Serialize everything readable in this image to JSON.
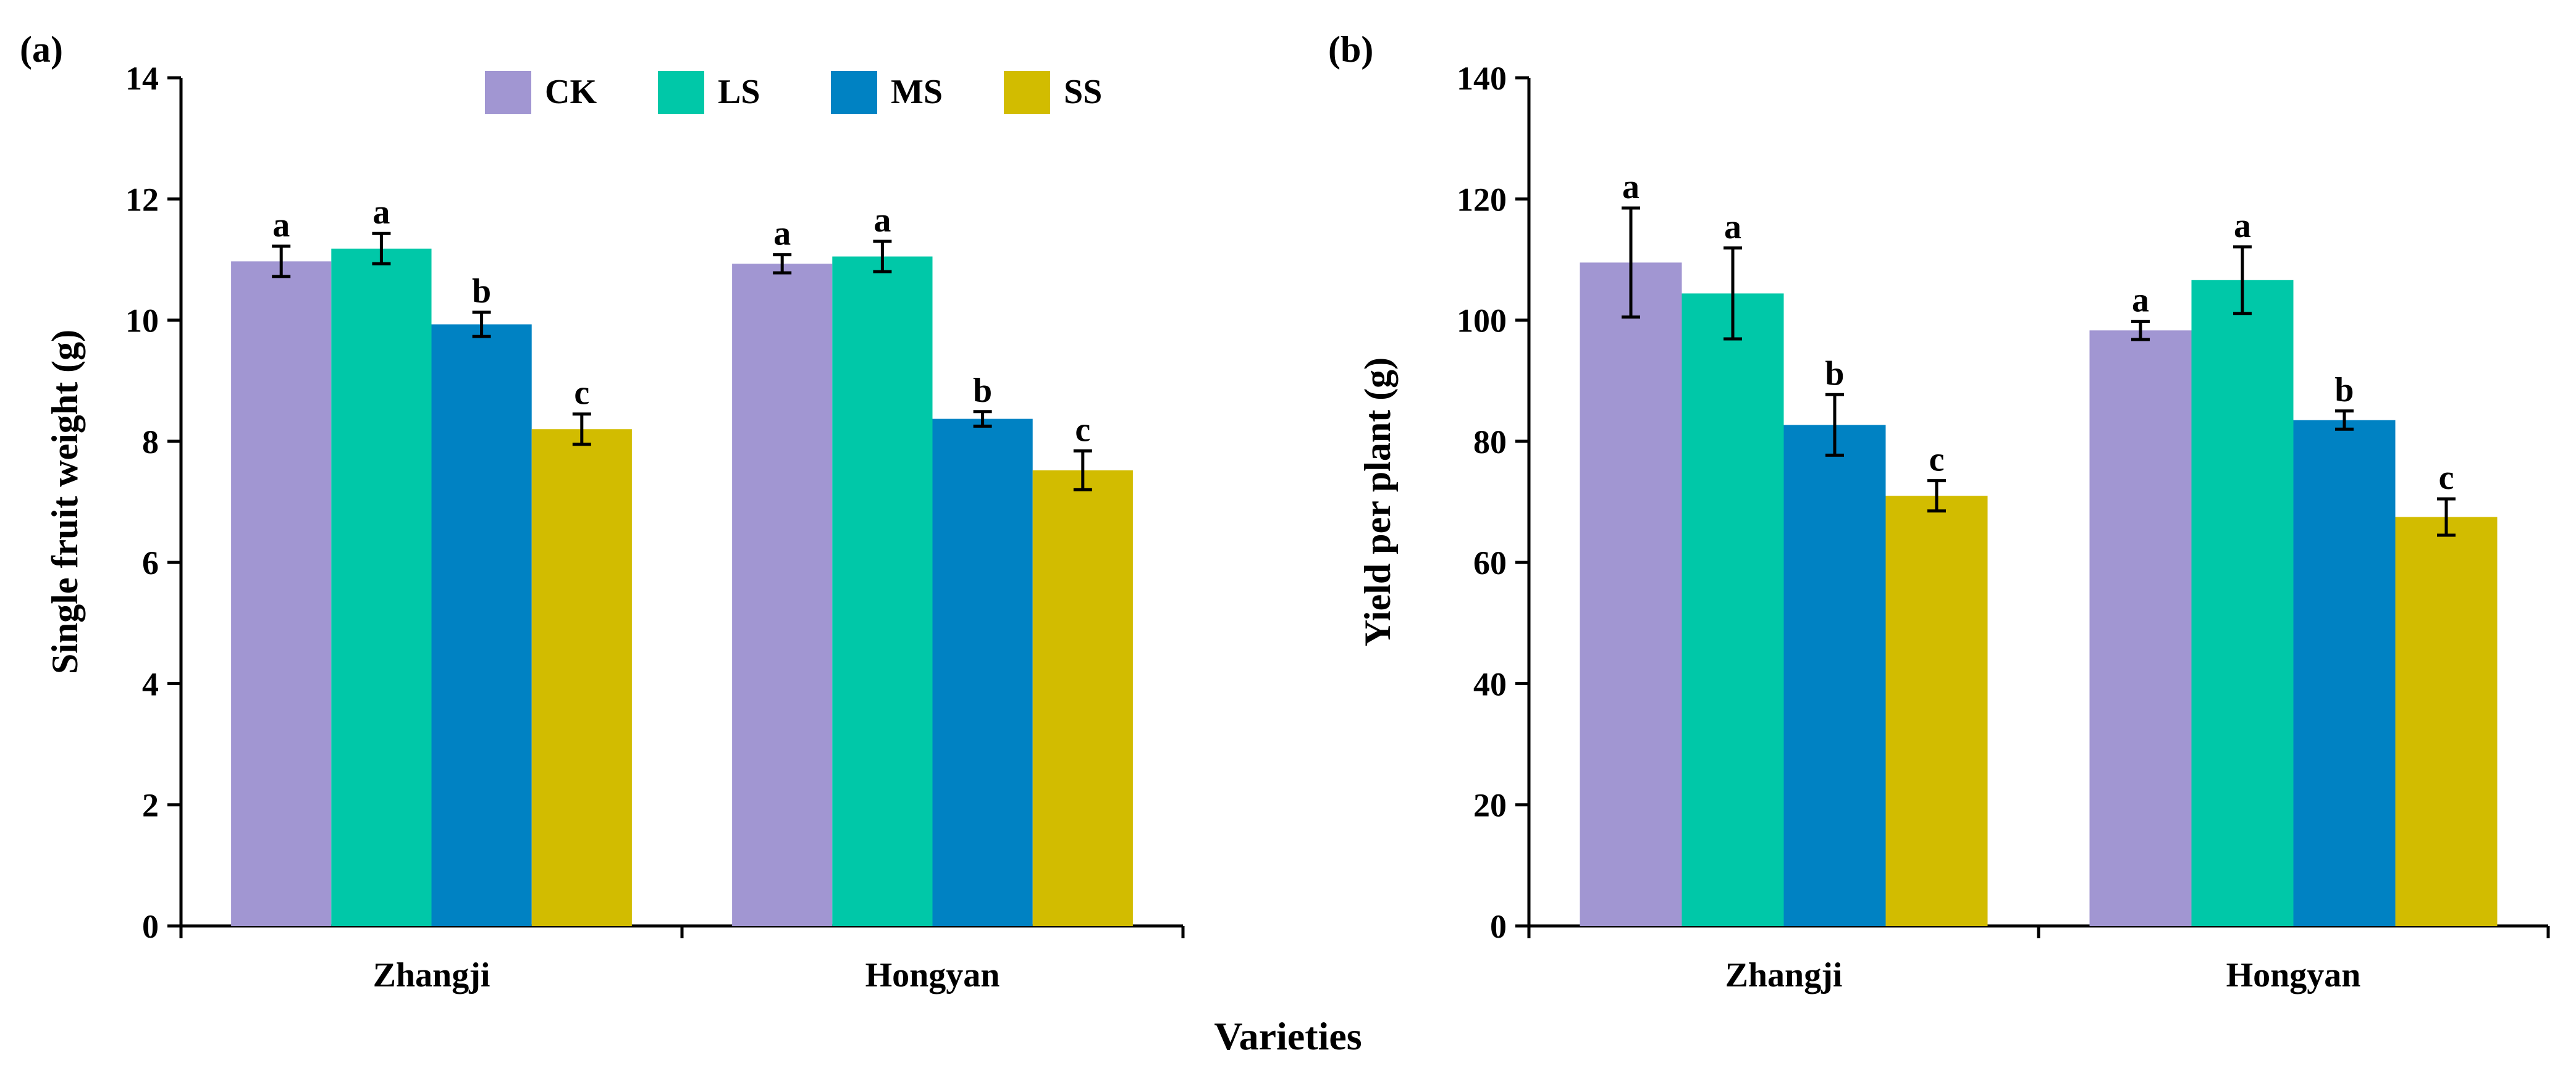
{
  "figure": {
    "shared_xlabel": "Varieties"
  },
  "colors": {
    "CK": "#A196D2",
    "LS": "#00C8A8",
    "MS": "#0082C3",
    "SS": "#D2BC00",
    "axis": "#000000",
    "error": "#000000"
  },
  "chart_data": [
    {
      "panel": "(a)",
      "type": "bar",
      "title": "",
      "xlabel": "",
      "ylabel": "Single fruit weight  (g)",
      "ylim": [
        0,
        14
      ],
      "yticks": [
        0,
        2,
        4,
        6,
        8,
        10,
        12,
        14
      ],
      "grid": false,
      "legend": "top",
      "categories": [
        "Zhangji",
        "Hongyan"
      ],
      "series": [
        {
          "name": "CK",
          "color": "#A196D2",
          "values": [
            10.97,
            10.93
          ],
          "errors": [
            0.25,
            0.15
          ],
          "letters": [
            "a",
            "a"
          ]
        },
        {
          "name": "LS",
          "color": "#00C8A8",
          "values": [
            11.18,
            11.05
          ],
          "errors": [
            0.25,
            0.25
          ],
          "letters": [
            "a",
            "a"
          ]
        },
        {
          "name": "MS",
          "color": "#0082C3",
          "values": [
            9.93,
            8.37
          ],
          "errors": [
            0.2,
            0.12
          ],
          "letters": [
            "b",
            "b"
          ]
        },
        {
          "name": "SS",
          "color": "#D2BC00",
          "values": [
            8.2,
            7.52
          ],
          "errors": [
            0.25,
            0.32
          ],
          "letters": [
            "c",
            "c"
          ]
        }
      ]
    },
    {
      "panel": "(b)",
      "type": "bar",
      "title": "",
      "xlabel": "",
      "ylabel": "Yield per plant  (g)",
      "ylim": [
        0,
        140
      ],
      "yticks": [
        0,
        20,
        40,
        60,
        80,
        100,
        120,
        140
      ],
      "grid": false,
      "legend": "none",
      "categories": [
        "Zhangji",
        "Hongyan"
      ],
      "series": [
        {
          "name": "CK",
          "color": "#A196D2",
          "values": [
            109.5,
            98.3
          ],
          "errors": [
            9.0,
            1.5
          ],
          "letters": [
            "a",
            "a"
          ]
        },
        {
          "name": "LS",
          "color": "#00C8A8",
          "values": [
            104.4,
            106.6
          ],
          "errors": [
            7.5,
            5.5
          ],
          "letters": [
            "a",
            "a"
          ]
        },
        {
          "name": "MS",
          "color": "#0082C3",
          "values": [
            82.7,
            83.5
          ],
          "errors": [
            5.0,
            1.5
          ],
          "letters": [
            "b",
            "b"
          ]
        },
        {
          "name": "SS",
          "color": "#D2BC00",
          "values": [
            71.0,
            67.5
          ],
          "errors": [
            2.5,
            3.0
          ],
          "letters": [
            "c",
            "c"
          ]
        }
      ]
    }
  ]
}
